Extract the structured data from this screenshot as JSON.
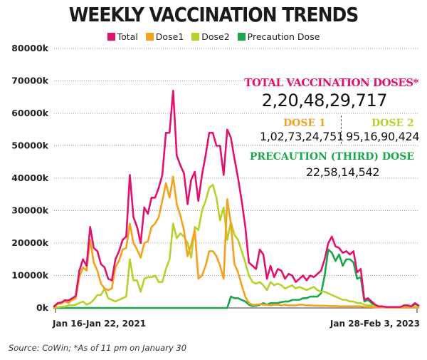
{
  "title": "WEEKLY VACCINATION TRENDS",
  "legend": [
    {
      "name": "Total",
      "color": "#e0116f"
    },
    {
      "name": "Dose1",
      "color": "#f4a21e"
    },
    {
      "name": "Dose2",
      "color": "#b7d12a"
    },
    {
      "name": "Precaution Dose",
      "color": "#1aa64b"
    }
  ],
  "annotations": {
    "total_label": "TOTAL VACCINATION DOSES*",
    "total_value": "2,20,48,29,717",
    "dose1_label": "DOSE 1",
    "dose1_value": "1,02,73,24,751",
    "dose2_label": "DOSE 2",
    "dose2_value": "95,16,90,424",
    "precaution_label": "PRECAUTION (THIRD) DOSE",
    "precaution_value": "22,58,14,542"
  },
  "source": "Source: CoWin; *As of 11 pm on January 30",
  "chart_data": {
    "type": "line",
    "title": "WEEKLY VACCINATION TRENDS",
    "x_first_label": "Jan 16-Jan 22, 2021",
    "x_last_label": "Jan 28-Feb 3, 2023",
    "y_ticks": [
      "0k",
      "10000k",
      "20000k",
      "30000k",
      "40000k",
      "50000k",
      "60000k",
      "70000k",
      "80000k"
    ],
    "ylim": [
      0,
      80000
    ],
    "y_unit": "k",
    "grid": "horizontal dotted",
    "series": [
      {
        "name": "Total",
        "color": "#e0116f",
        "values": [
          500,
          1500,
          1700,
          2400,
          2300,
          3000,
          3700,
          11500,
          15000,
          13000,
          25000,
          18500,
          17500,
          13500,
          12500,
          9000,
          8500,
          15000,
          17500,
          21000,
          22000,
          41000,
          28000,
          25000,
          20000,
          31000,
          29000,
          34000,
          34000,
          37000,
          41000,
          54000,
          54000,
          67000,
          47000,
          44000,
          41500,
          32000,
          39500,
          42000,
          33000,
          41000,
          47000,
          54000,
          54000,
          50000,
          50000,
          41000,
          55000,
          52500,
          46000,
          40000,
          33000,
          25000,
          14000,
          13000,
          12000,
          18000,
          16500,
          9000,
          13000,
          9500,
          12000,
          11500,
          9000,
          10500,
          10000,
          8000,
          9000,
          10000,
          8500,
          10000,
          9500,
          10500,
          11500,
          15000,
          20000,
          22000,
          19000,
          18500,
          17000,
          17500,
          16500,
          17500,
          11000,
          12000,
          2500,
          3000,
          2000,
          1000,
          500,
          500,
          300,
          300,
          300,
          300,
          300,
          800,
          800,
          500,
          1500,
          800
        ]
      },
      {
        "name": "Dose1",
        "color": "#f4a21e",
        "values": [
          200,
          1200,
          1400,
          2000,
          1500,
          2500,
          3000,
          9500,
          12500,
          11500,
          21000,
          14000,
          11500,
          7500,
          6000,
          5500,
          6000,
          12500,
          14500,
          18000,
          18500,
          26000,
          20000,
          18000,
          15500,
          20000,
          20500,
          25000,
          26000,
          28000,
          33000,
          38500,
          34000,
          40500,
          32000,
          28500,
          24000,
          16000,
          19500,
          24000,
          9000,
          10000,
          13000,
          17500,
          17500,
          16000,
          13000,
          9000,
          33500,
          26000,
          13500,
          11000,
          7000,
          3500,
          1500,
          1000,
          1000,
          1200,
          1000,
          1000,
          800,
          1000,
          1000,
          800,
          1000,
          800,
          800,
          800,
          1000,
          1000,
          800,
          800,
          700,
          700,
          700,
          700,
          600,
          600,
          600,
          500,
          500,
          500,
          500,
          500,
          500,
          500,
          300,
          300,
          300,
          200,
          200,
          200,
          100,
          100,
          100,
          100,
          100,
          100,
          100,
          100,
          100,
          100
        ]
      },
      {
        "name": "Dose2",
        "color": "#b7d12a",
        "values": [
          100,
          200,
          400,
          400,
          800,
          800,
          1000,
          1500,
          2000,
          1000,
          1500,
          2500,
          4000,
          4000,
          6000,
          3000,
          2500,
          2000,
          2500,
          3000,
          3500,
          15000,
          8500,
          8500,
          5000,
          9000,
          9500,
          9500,
          10000,
          8000,
          8000,
          12000,
          15000,
          26000,
          21500,
          23000,
          22000,
          20000,
          15500,
          25000,
          24000,
          30000,
          33000,
          37000,
          38000,
          34000,
          27000,
          31000,
          21000,
          26500,
          22500,
          21000,
          17500,
          14000,
          10000,
          8000,
          7500,
          8000,
          7000,
          5500,
          8000,
          7000,
          7500,
          7000,
          6000,
          6500,
          7000,
          6000,
          6500,
          6000,
          5500,
          6000,
          6500,
          5500,
          5000,
          5000,
          4500,
          4000,
          3500,
          3000,
          2500,
          2500,
          2000,
          2000,
          1500,
          1500,
          1000,
          800,
          800,
          500,
          400,
          400,
          300,
          200,
          200,
          200,
          200,
          400,
          300,
          200,
          300,
          200
        ]
      },
      {
        "name": "Precaution Dose",
        "color": "#1aa64b",
        "values": [
          0,
          0,
          0,
          0,
          0,
          0,
          0,
          0,
          0,
          0,
          0,
          0,
          0,
          0,
          0,
          0,
          0,
          0,
          0,
          0,
          0,
          0,
          0,
          0,
          0,
          0,
          0,
          0,
          0,
          0,
          0,
          0,
          0,
          0,
          0,
          0,
          0,
          0,
          0,
          0,
          0,
          0,
          0,
          0,
          0,
          0,
          0,
          0,
          0,
          3500,
          3000,
          3000,
          2500,
          2000,
          1000,
          600,
          700,
          1000,
          1500,
          1000,
          1500,
          1500,
          1500,
          1800,
          2000,
          2000,
          2500,
          2500,
          2500,
          3000,
          3000,
          3500,
          3500,
          3500,
          4500,
          10000,
          18000,
          17000,
          14500,
          16500,
          13000,
          15000,
          15000,
          14000,
          9000,
          9500,
          2000,
          2500,
          1500,
          800,
          400,
          300,
          200,
          200,
          200,
          200,
          200,
          400,
          300,
          200,
          1200,
          700
        ]
      }
    ]
  }
}
